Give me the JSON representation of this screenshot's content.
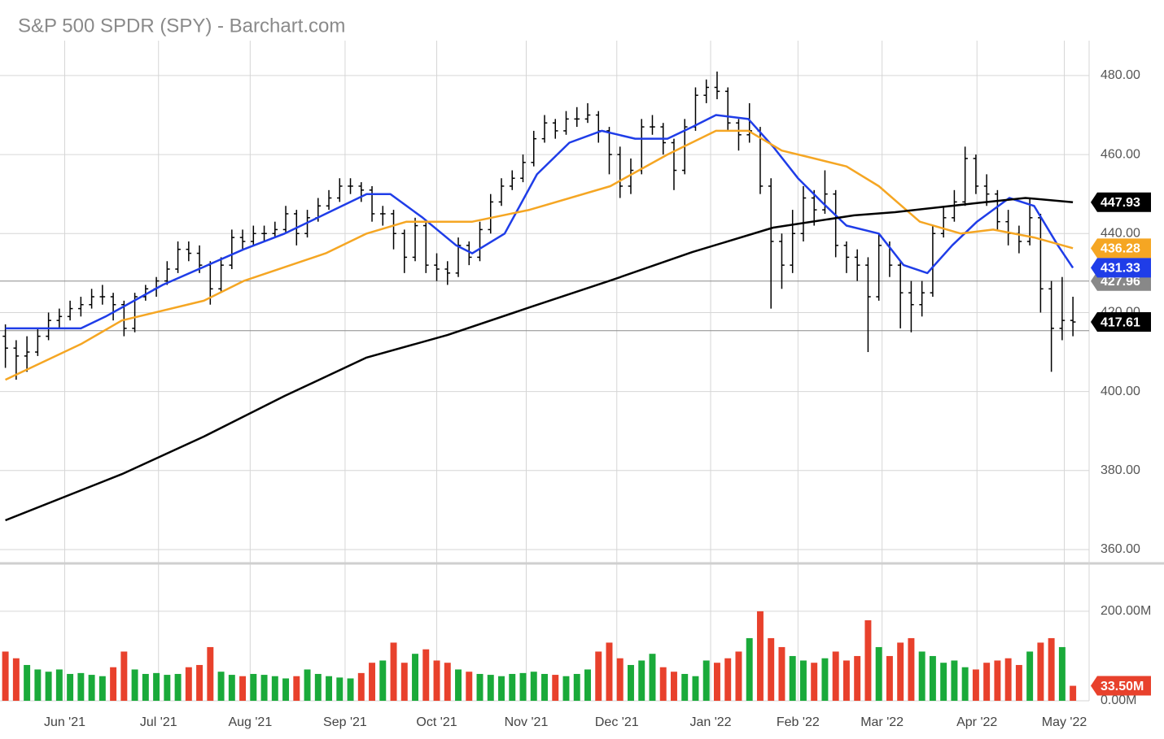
{
  "chart_data": {
    "type": "ohlc",
    "title": "S&P 500 SPDR (SPY) - Barchart.com",
    "bar_color": "#000000",
    "xlim": [
      -0.5,
      100.5
    ],
    "xticks": [
      {
        "value": 5.5,
        "label": "Jun '21"
      },
      {
        "value": 14.2,
        "label": "Jul '21"
      },
      {
        "value": 22.7,
        "label": "Aug '21"
      },
      {
        "value": 31.5,
        "label": "Sep '21"
      },
      {
        "value": 40,
        "label": "Oct '21"
      },
      {
        "value": 48.3,
        "label": "Nov '21"
      },
      {
        "value": 56.7,
        "label": "Dec '21"
      },
      {
        "value": 65.4,
        "label": "Jan '22"
      },
      {
        "value": 73.5,
        "label": "Feb '22"
      },
      {
        "value": 81.3,
        "label": "Mar '22"
      },
      {
        "value": 90.1,
        "label": "Apr '22"
      },
      {
        "value": 98.2,
        "label": "May '22"
      }
    ],
    "ylim": [
      356.5,
      487.8
    ],
    "yticks": [
      {
        "value": 360,
        "label": "360.00"
      },
      {
        "value": 380,
        "label": "380.00"
      },
      {
        "value": 400,
        "label": "400.00"
      },
      {
        "value": 420,
        "label": "420.00"
      },
      {
        "value": 440,
        "label": "440.00"
      },
      {
        "value": 460,
        "label": "460.00"
      },
      {
        "value": 480,
        "label": "480.00"
      }
    ],
    "grid": true,
    "bars": [
      [
        414,
        417,
        406,
        411
      ],
      [
        411,
        413,
        403,
        409
      ],
      [
        409,
        414,
        405,
        410
      ],
      [
        410,
        416,
        409,
        414
      ],
      [
        414,
        420,
        413,
        418
      ],
      [
        418,
        421,
        416,
        419
      ],
      [
        419,
        423,
        418,
        421
      ],
      [
        421,
        424,
        419,
        422
      ],
      [
        422,
        426,
        421,
        424
      ],
      [
        424,
        427,
        422,
        424
      ],
      [
        424,
        425,
        418,
        422
      ],
      [
        422,
        423,
        414,
        416
      ],
      [
        416,
        425,
        415,
        424
      ],
      [
        424,
        427,
        423,
        426
      ],
      [
        426,
        429,
        424,
        428
      ],
      [
        428,
        433,
        427,
        431
      ],
      [
        431,
        438,
        430,
        436
      ],
      [
        436,
        438,
        433,
        435
      ],
      [
        435,
        437,
        430,
        432
      ],
      [
        432,
        433,
        422,
        426
      ],
      [
        426,
        434,
        425,
        432
      ],
      [
        432,
        441,
        431,
        439
      ],
      [
        439,
        441,
        436,
        438
      ],
      [
        438,
        442,
        437,
        440
      ],
      [
        440,
        442,
        438,
        440
      ],
      [
        440,
        443,
        439,
        441
      ],
      [
        441,
        447,
        440,
        445
      ],
      [
        445,
        446,
        437,
        440
      ],
      [
        440,
        446,
        439,
        444
      ],
      [
        444,
        449,
        443,
        447
      ],
      [
        447,
        451,
        446,
        449
      ],
      [
        449,
        454,
        448,
        452
      ],
      [
        452,
        454,
        450,
        452
      ],
      [
        452,
        453,
        448,
        451
      ],
      [
        451,
        452,
        443,
        445
      ],
      [
        445,
        447,
        442,
        445
      ],
      [
        445,
        446,
        436,
        440
      ],
      [
        440,
        441,
        430,
        434
      ],
      [
        434,
        444,
        433,
        442
      ],
      [
        442,
        443,
        430,
        432
      ],
      [
        432,
        435,
        428,
        431
      ],
      [
        431,
        433,
        427,
        430
      ],
      [
        430,
        439,
        429,
        437
      ],
      [
        437,
        438,
        432,
        434
      ],
      [
        434,
        443,
        433,
        441
      ],
      [
        441,
        450,
        440,
        448
      ],
      [
        448,
        454,
        447,
        452
      ],
      [
        452,
        456,
        451,
        454
      ],
      [
        454,
        460,
        453,
        458
      ],
      [
        458,
        466,
        457,
        464
      ],
      [
        464,
        470,
        463,
        468
      ],
      [
        468,
        469,
        464,
        466
      ],
      [
        466,
        471,
        465,
        469
      ],
      [
        469,
        472,
        467,
        469
      ],
      [
        469,
        473,
        468,
        470
      ],
      [
        470,
        471,
        463,
        466
      ],
      [
        466,
        467,
        455,
        460
      ],
      [
        460,
        462,
        449,
        452
      ],
      [
        452,
        459,
        450,
        456
      ],
      [
        456,
        469,
        455,
        467
      ],
      [
        467,
        470,
        465,
        467
      ],
      [
        467,
        468,
        460,
        463
      ],
      [
        463,
        464,
        451,
        456
      ],
      [
        456,
        469,
        455,
        467
      ],
      [
        467,
        477,
        466,
        475
      ],
      [
        475,
        479,
        473,
        477
      ],
      [
        477,
        481,
        474,
        476
      ],
      [
        476,
        477,
        466,
        468
      ],
      [
        468,
        469,
        461,
        465
      ],
      [
        465,
        473,
        463,
        466
      ],
      [
        466,
        467,
        450,
        452
      ],
      [
        452,
        454,
        421,
        438
      ],
      [
        438,
        440,
        426,
        432
      ],
      [
        432,
        446,
        430,
        440
      ],
      [
        440,
        452,
        438,
        449
      ],
      [
        449,
        451,
        442,
        446
      ],
      [
        446,
        456,
        445,
        450
      ],
      [
        450,
        451,
        434,
        437
      ],
      [
        437,
        438,
        430,
        434
      ],
      [
        434,
        436,
        428,
        432
      ],
      [
        432,
        434,
        410,
        424
      ],
      [
        424,
        440,
        423,
        437
      ],
      [
        437,
        438,
        429,
        432
      ],
      [
        432,
        433,
        416,
        425
      ],
      [
        425,
        428,
        415,
        422
      ],
      [
        422,
        428,
        419,
        425
      ],
      [
        425,
        442,
        424,
        440
      ],
      [
        440,
        447,
        439,
        444
      ],
      [
        444,
        451,
        443,
        448
      ],
      [
        448,
        462,
        447,
        459
      ],
      [
        459,
        460,
        450,
        452
      ],
      [
        452,
        455,
        447,
        450
      ],
      [
        450,
        451,
        441,
        443
      ],
      [
        443,
        446,
        437,
        440
      ],
      [
        440,
        442,
        435,
        438
      ],
      [
        438,
        449,
        437,
        444
      ],
      [
        444,
        445,
        420,
        426
      ],
      [
        426,
        428,
        405,
        416
      ],
      [
        416,
        429,
        413,
        418
      ],
      [
        418,
        424,
        414,
        417.61
      ]
    ],
    "series": [
      {
        "color": "#1f3de8",
        "x": [
          0,
          7,
          9.3,
          14.6,
          22.1,
          25.9,
          29.7,
          33.5,
          35.7,
          38.7,
          41.8,
          43.3,
          46.3,
          49.3,
          52.3,
          55.3,
          58.4,
          61.4,
          63.7,
          65.9,
          68.9,
          71.2,
          73.5,
          75.7,
          78,
          81,
          83.3,
          85.5,
          87.8,
          90.1,
          93.1,
          95.4,
          97.6,
          99
        ],
        "values": [
          416,
          416,
          419,
          427,
          436,
          440,
          445,
          450,
          450,
          444,
          437,
          435,
          440,
          455,
          463,
          466,
          464,
          464,
          467,
          470,
          469,
          462,
          454,
          448,
          442,
          440,
          432,
          430,
          437,
          443,
          449,
          447,
          437,
          431.33
        ]
      },
      {
        "color": "#f5a623",
        "x": [
          0,
          7,
          10.8,
          18.4,
          22.1,
          29.7,
          33.5,
          37.2,
          43.3,
          48.6,
          56.1,
          61.4,
          65.9,
          68.9,
          72,
          75,
          78,
          81,
          84.8,
          88.6,
          91.6,
          95.4,
          99
        ],
        "values": [
          403,
          412,
          418,
          423,
          428,
          435,
          440,
          443,
          443,
          446,
          452,
          460,
          466,
          466,
          461,
          459,
          457,
          452,
          443,
          440,
          441,
          439,
          436.28
        ]
      },
      {
        "color": "#000000",
        "x": [
          0,
          10.8,
          18.4,
          25.9,
          33.5,
          41,
          48.6,
          56.1,
          63.7,
          71.2,
          78.7,
          82.5,
          90.1,
          94.6,
          99
        ],
        "values": [
          367.4,
          379.1,
          388.6,
          398.9,
          408.6,
          414.3,
          421.3,
          428.1,
          435.3,
          441.5,
          444.6,
          445.4,
          447.7,
          449,
          447.93
        ]
      }
    ],
    "reference_lines": [
      427.96,
      415.4
    ],
    "price_labels": [
      {
        "value": 447.93,
        "label": "447.93",
        "color": "#000000"
      },
      {
        "value": 436.28,
        "label": "436.28",
        "color": "#f5a623"
      },
      {
        "value": 427.96,
        "label": "427.96",
        "color": "#888888"
      },
      {
        "value": 431.33,
        "label": "431.33",
        "color": "#1f3de8"
      },
      {
        "value": 417.61,
        "label": "417.61",
        "color": "#000000"
      }
    ],
    "volume": {
      "ylim": [
        0,
        307
      ],
      "yticks": [
        {
          "value": 0,
          "label": "0.00M"
        },
        {
          "value": 200,
          "label": "200.00M"
        }
      ],
      "up_color": "#1aaa3a",
      "down_color": "#e8412c",
      "values": [
        110,
        95,
        80,
        70,
        65,
        70,
        60,
        62,
        58,
        55,
        75,
        110,
        70,
        60,
        62,
        58,
        60,
        75,
        80,
        120,
        65,
        58,
        55,
        60,
        58,
        55,
        50,
        55,
        70,
        60,
        55,
        52,
        50,
        62,
        85,
        90,
        130,
        85,
        105,
        115,
        90,
        85,
        70,
        65,
        60,
        58,
        55,
        60,
        62,
        65,
        60,
        58,
        55,
        60,
        70,
        110,
        130,
        95,
        80,
        90,
        105,
        75,
        65,
        60,
        55,
        90,
        85,
        95,
        110,
        140,
        200,
        140,
        120,
        100,
        90,
        85,
        95,
        110,
        90,
        100,
        180,
        120,
        100,
        130,
        140,
        110,
        100,
        85,
        90,
        75,
        70,
        85,
        90,
        95,
        80,
        110,
        130,
        140,
        120,
        33.5
      ],
      "last_label": {
        "value": 33.5,
        "label": "33.50M",
        "color": "#e8412c"
      }
    }
  }
}
